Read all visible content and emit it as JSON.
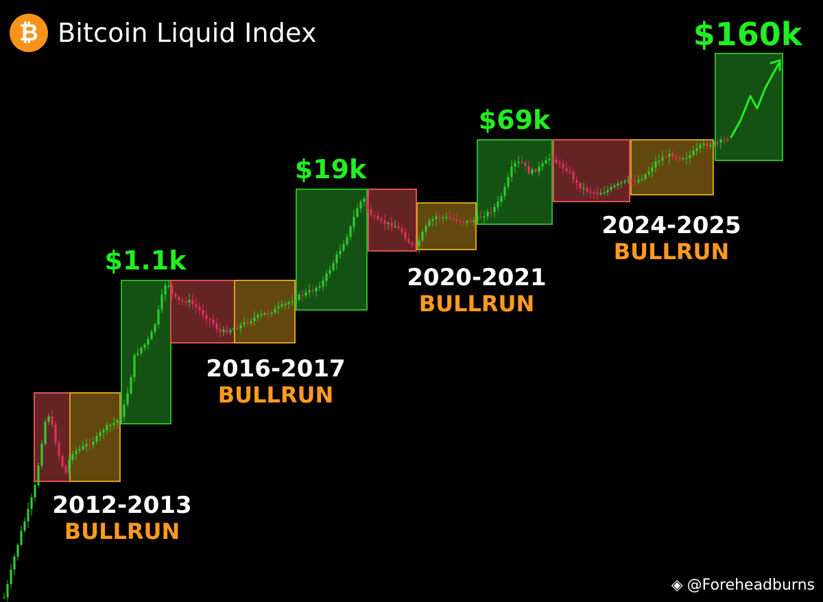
{
  "header": {
    "logo_glyph": "₿",
    "title": "Bitcoin Liquid Index"
  },
  "watermark": {
    "icon": "binance-logo-icon",
    "handle": "@Foreheadburns"
  },
  "colors": {
    "up": "#2ecc2e",
    "down": "#e0305a",
    "green_zone": "#2db52d",
    "red_zone": "#e05050",
    "orange_zone": "#d9a020",
    "peak_label": "#22ee22",
    "bullrun_label": "#ff9a1f",
    "year_label": "#ffffff",
    "brand": "#F7931A"
  },
  "chart_data": {
    "type": "candlestick",
    "title": "Bitcoin Liquid Index",
    "yscale": "log",
    "grid": false,
    "peaks": [
      "$1.1k",
      "$19k",
      "$69k",
      "$160k"
    ],
    "cycles": [
      {
        "label": "2012-2013",
        "subtitle": "BULLRUN",
        "peak": "$1.1k"
      },
      {
        "label": "2016-2017",
        "subtitle": "BULLRUN",
        "peak": "$19k"
      },
      {
        "label": "2020-2021",
        "subtitle": "BULLRUN",
        "peak": "$69k"
      },
      {
        "label": "2024-2025",
        "subtitle": "BULLRUN",
        "peak": "$160k"
      }
    ],
    "phases": [
      "bear",
      "accumulation",
      "bull",
      "bear",
      "accumulation",
      "bull",
      "bear",
      "accumulation",
      "bull",
      "bear",
      "accumulation",
      "bull"
    ]
  }
}
